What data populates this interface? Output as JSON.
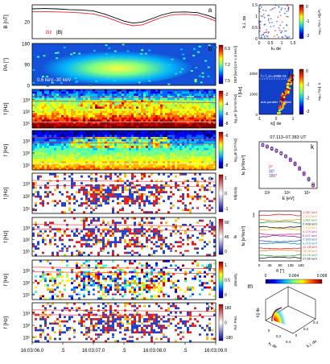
{
  "chart_data": [
    {
      "id": "a",
      "type": "line",
      "panel_label": "a",
      "ylabel": "B [nT]",
      "ylim": [
        15,
        25
      ],
      "yticks": [
        20
      ],
      "legend": [
        "Bz",
        "|B|"
      ],
      "x": [
        0,
        0.2,
        0.4,
        0.6,
        0.8,
        1.0,
        1.2,
        1.35,
        1.5,
        1.65,
        1.8,
        2.0,
        2.1,
        2.3,
        2.5,
        2.7,
        2.9,
        3.0
      ],
      "series": [
        {
          "name": "|B|",
          "color": "#000000",
          "values": [
            23.8,
            23.9,
            23.8,
            23.6,
            23.5,
            23.2,
            22.2,
            21.2,
            20.2,
            19.6,
            19.9,
            21.2,
            21.9,
            22.8,
            22.9,
            22.7,
            21.7,
            20.9
          ]
        },
        {
          "name": "Bz",
          "color": "#e8242c",
          "values": [
            23.0,
            23.0,
            22.9,
            22.8,
            22.6,
            22.3,
            21.4,
            20.4,
            19.4,
            18.8,
            19.1,
            20.5,
            21.2,
            22.1,
            22.2,
            22.0,
            20.9,
            20.2
          ]
        }
      ]
    },
    {
      "id": "b",
      "type": "heatmap",
      "panel_label": "b",
      "ylabel": "PA [°]",
      "ylim": [
        0,
        180
      ],
      "yticks": [
        0,
        90,
        180
      ],
      "annotation": "0.6 keV–30 keV",
      "colorbar": {
        "label": "DEF [keV/(cm² s sr keV)]",
        "ticks": [
          "6.9",
          "7.2",
          "7.5"
        ]
      }
    },
    {
      "id": "c",
      "type": "heatmap",
      "panel_label": "c",
      "ylabel": "f [Hz]",
      "yticks": [
        "10¹",
        "10²",
        "10³"
      ],
      "colorbar": {
        "label": "log₁₀E² [mV²/m²/Hz]",
        "ticks": [
          "-2",
          "-4",
          "-6",
          "-8"
        ]
      }
    },
    {
      "id": "d",
      "type": "heatmap",
      "panel_label": "d",
      "ylabel": "f [Hz]",
      "yticks": [
        "10¹",
        "10²",
        "10³"
      ],
      "colorbar": {
        "label": "log₁₀B² [nT²/Hz]",
        "ticks": [
          "-6",
          "-8"
        ]
      }
    },
    {
      "id": "e",
      "type": "heatmap",
      "panel_label": "e",
      "ylabel": "f [Hz]",
      "yticks": [
        "10¹",
        "10²",
        "10³"
      ],
      "colorbar": {
        "label": "Ellipticity",
        "ticks": [
          "1",
          "0",
          "-1"
        ]
      }
    },
    {
      "id": "f",
      "type": "heatmap",
      "panel_label": "f",
      "ylabel": "f [Hz]",
      "yticks": [
        "10¹",
        "10²",
        "10³"
      ],
      "colorbar": {
        "label": "θk",
        "ticks": [
          "90",
          "45",
          "0"
        ]
      }
    },
    {
      "id": "g",
      "type": "heatmap",
      "panel_label": "g",
      "ylabel": "f [Hz]",
      "yticks": [
        "10¹",
        "10²",
        "10³"
      ],
      "colorbar": {
        "label": "planarity",
        "ticks": [
          "1",
          "0.5",
          "0"
        ]
      }
    },
    {
      "id": "h",
      "type": "heatmap",
      "panel_label": "h",
      "ylabel": "f [Hz]",
      "yticks": [
        "10¹",
        "10²",
        "10³"
      ],
      "colorbar": {
        "label": "Pol. Pres.",
        "ticks": [
          "180",
          "0",
          "-180"
        ]
      }
    },
    {
      "id": "time_axis",
      "type": "axis",
      "xticks": [
        "16:03:06.0",
        ".5",
        "16:03:07.0",
        ".5",
        "16:03:08.0",
        ".5",
        "16:03:09.0"
      ]
    },
    {
      "id": "i",
      "type": "scatter",
      "panel_label": "i",
      "xlabel": "kₓ de",
      "ylabel": "k⊥ de",
      "xticks": [
        "0",
        "0.5",
        "1",
        "1.5"
      ],
      "yticks": [
        "0",
        "0.5",
        "1",
        "1.5"
      ],
      "colorbar": {
        "label": "log₁₀ P(k⊥, k∥)/P₀",
        "ticks": [
          "0",
          "-1",
          "-2"
        ]
      }
    },
    {
      "id": "j",
      "type": "heatmap",
      "panel_label": "j",
      "ylabel": "f [Hz]",
      "xlabel": "k∥ de",
      "xticks": [
        "-1",
        "0",
        "1"
      ],
      "yticks": [
        "0",
        "1000",
        "2000"
      ],
      "annotation": "f ≈ f_ce=2068 Hz",
      "labels": [
        "anti-parallel",
        "parallel"
      ],
      "colorbar": {
        "label": "log₁₀ P(k∥, f)",
        "ticks": [
          "0",
          "-1",
          "-2",
          "-3"
        ]
      }
    },
    {
      "id": "k",
      "type": "scatter",
      "panel_label": "k",
      "title": "07.113–07.383 UT",
      "xlabel": "E [eV]",
      "ylabel": "fe [s³/km⁶]",
      "xticks": [
        "10²",
        "10³",
        "10⁴"
      ],
      "legend": [
        "0°",
        "90°",
        "180°"
      ],
      "x": [
        60,
        100,
        170,
        290,
        500,
        850,
        1450,
        2500,
        4200,
        7000,
        12000,
        20000
      ],
      "series": [
        {
          "name": "0°",
          "color": "#e8242c",
          "values": [
            0.1,
            0.06,
            0.03,
            0.015,
            0.006,
            0.002,
            0.0006,
            0.00015,
            3e-05,
            5e-06,
            8e-07,
            1e-07
          ]
        },
        {
          "name": "90°",
          "color": "#2c4bd6",
          "values": [
            0.12,
            0.07,
            0.035,
            0.017,
            0.007,
            0.0025,
            0.0008,
            0.0002,
            4e-05,
            7e-06,
            1e-06,
            1.5e-07
          ]
        },
        {
          "name": "180°",
          "color": "#7a2a9e",
          "values": [
            0.09,
            0.05,
            0.025,
            0.012,
            0.005,
            0.0018,
            0.0005,
            0.00012,
            2.5e-05,
            4e-06,
            6e-07,
            8e-08
          ]
        }
      ]
    },
    {
      "id": "l",
      "type": "line",
      "panel_label": "l",
      "xlabel": "θ [°]",
      "ylabel": "fe [s³/km⁶]",
      "xticks": [
        "0",
        "45",
        "90",
        "135",
        "180"
      ],
      "legend": [
        "1.087 keV",
        "1.423 keV",
        "1.862 keV",
        "2.438 keV",
        "3.192 keV",
        "4.179 keV",
        "5.471 keV",
        "7.163 keV",
        "9.378 keV",
        "12.28 keV",
        "16.08 keV",
        "21.05 keV",
        "27.56 keV"
      ],
      "legend_colors": [
        "#e8242c",
        "#f08a24",
        "#2c9e3c",
        "#1b1b1b",
        "#e8c020",
        "#d42c8a",
        "#7a2a9e",
        "#2c4bd6",
        "#16a0a0",
        "#e8242c",
        "#f08a24",
        "#2c9e3c",
        "#1b1b1b"
      ]
    },
    {
      "id": "m",
      "type": "surface",
      "panel_label": "m",
      "xlabel": "kₓ de",
      "ylabel": "k⊥ de",
      "zlabel": "k∥ de",
      "xticks": [
        "0",
        "0.2",
        "0.4"
      ],
      "yticks": [
        "0",
        "0.2",
        "0.4"
      ],
      "colorbar": {
        "ticks": [
          "0",
          "0.004",
          "0.008"
        ]
      }
    }
  ]
}
